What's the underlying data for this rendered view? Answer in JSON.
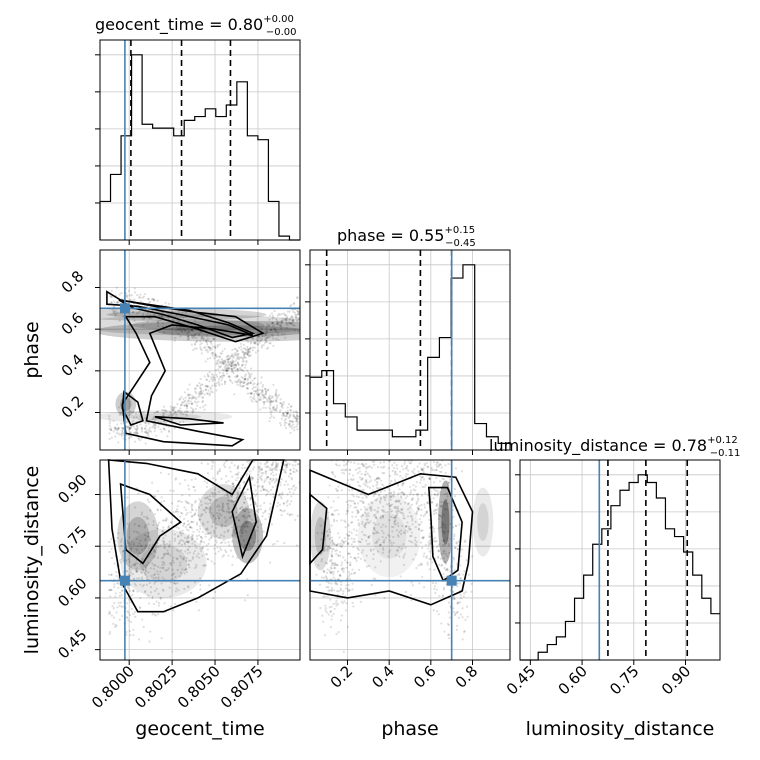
{
  "chart_data": {
    "type": "corner",
    "parameters": [
      "geocent_time",
      "phase",
      "luminosity_distance"
    ],
    "truth_color": "#4682b4",
    "truths": {
      "geocent_time": 0.79975,
      "phase": 0.7,
      "luminosity_distance": 0.65
    },
    "titles": [
      {
        "prefix": "geocent_time = 0.80",
        "sup": "+0.00",
        "sub": "−0.00"
      },
      {
        "prefix": "phase = 0.55",
        "sup": "+0.15",
        "sub": "−0.45"
      },
      {
        "prefix": "luminosity_distance = 0.78",
        "sup": "+0.12",
        "sub": "−0.11"
      }
    ],
    "axes": {
      "geocent_time": {
        "label": "geocent_time",
        "range": [
          0.7983,
          0.80995
        ],
        "ticks": [
          0.8,
          0.8025,
          0.805,
          0.8075
        ],
        "tick_labels": [
          "0.8000",
          "0.8025",
          "0.8050",
          "0.8075"
        ]
      },
      "phase": {
        "label": "phase",
        "range": [
          0.02,
          0.98
        ],
        "ticks": [
          0.2,
          0.4,
          0.6,
          0.8
        ],
        "tick_labels": [
          "0.2",
          "0.4",
          "0.6",
          "0.8"
        ]
      },
      "luminosity_distance": {
        "label": "luminosity_distance",
        "range": [
          0.42,
          1.0
        ],
        "ticks": [
          0.45,
          0.6,
          0.75,
          0.9
        ],
        "tick_labels": [
          "0.45",
          "0.60",
          "0.75",
          "0.90"
        ]
      }
    },
    "marginals": [
      {
        "param": "geocent_time",
        "quantiles": [
          0.8001,
          0.80305,
          0.8059
        ],
        "counts": [
          10,
          17,
          27,
          48,
          30,
          29,
          29,
          27,
          31,
          32,
          34,
          32,
          35,
          41,
          27,
          26,
          10,
          1,
          0
        ]
      },
      {
        "param": "phase",
        "quantiles": [
          0.1,
          0.55,
          0.7
        ],
        "counts": [
          11,
          12,
          7,
          5,
          3,
          3,
          3,
          2,
          2,
          3,
          14,
          17,
          26,
          28,
          4,
          2,
          1
        ]
      },
      {
        "param": "luminosity_distance",
        "quantiles": [
          0.675,
          0.785,
          0.905
        ],
        "counts": [
          0,
          0,
          1,
          2,
          3,
          5,
          8,
          11,
          15,
          17,
          20,
          22,
          23,
          24,
          23,
          21,
          17,
          16,
          14,
          11,
          8,
          6
        ]
      }
    ]
  }
}
